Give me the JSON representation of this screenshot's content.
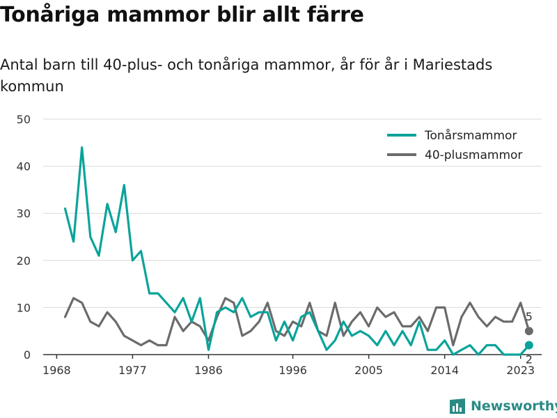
{
  "title": "Tonåriga mammor blir allt färre",
  "subtitle": "Antal barn till 40-plus- och tonåriga mammor, år för år i Mariestads kommun",
  "brand": "Newsworthy",
  "chart_data": {
    "type": "line",
    "x": [
      1969,
      1970,
      1971,
      1972,
      1973,
      1974,
      1975,
      1976,
      1977,
      1978,
      1979,
      1980,
      1981,
      1982,
      1983,
      1984,
      1985,
      1986,
      1987,
      1988,
      1989,
      1990,
      1991,
      1992,
      1993,
      1994,
      1995,
      1996,
      1997,
      1998,
      1999,
      2000,
      2001,
      2002,
      2003,
      2004,
      2005,
      2006,
      2007,
      2008,
      2009,
      2010,
      2011,
      2012,
      2013,
      2014,
      2015,
      2016,
      2017,
      2018,
      2019,
      2020,
      2021,
      2022,
      2023,
      2024
    ],
    "series": [
      {
        "name": "Tonårsmammor",
        "color": "#0aa39a",
        "values": [
          31,
          24,
          44,
          25,
          21,
          32,
          26,
          36,
          20,
          22,
          13,
          13,
          11,
          9,
          12,
          7,
          12,
          1,
          9,
          10,
          9,
          12,
          8,
          9,
          9,
          3,
          7,
          3,
          8,
          9,
          5,
          1,
          3,
          7,
          4,
          5,
          4,
          2,
          5,
          2,
          5,
          2,
          7,
          1,
          1,
          3,
          0,
          1,
          2,
          0,
          2,
          2,
          0,
          0,
          0,
          2
        ]
      },
      {
        "name": "40-plusmammor",
        "color": "#6b6b6b",
        "values": [
          8,
          12,
          11,
          7,
          6,
          9,
          7,
          4,
          3,
          2,
          3,
          2,
          2,
          8,
          5,
          7,
          6,
          3,
          8,
          12,
          11,
          4,
          5,
          7,
          11,
          5,
          4,
          7,
          6,
          11,
          5,
          4,
          11,
          4,
          7,
          9,
          6,
          10,
          8,
          9,
          6,
          6,
          8,
          5,
          10,
          10,
          2,
          8,
          11,
          8,
          6,
          8,
          7,
          7,
          11,
          5
        ]
      }
    ],
    "end_labels": [
      "2",
      "5"
    ],
    "xticks": [
      "1968",
      "1977",
      "1986",
      "1996",
      "2005",
      "2014",
      "2023"
    ],
    "yticks": [
      "0",
      "10",
      "20",
      "30",
      "40",
      "50"
    ],
    "ylim": [
      0,
      50
    ],
    "grid": true,
    "legend_position": "top-right"
  }
}
